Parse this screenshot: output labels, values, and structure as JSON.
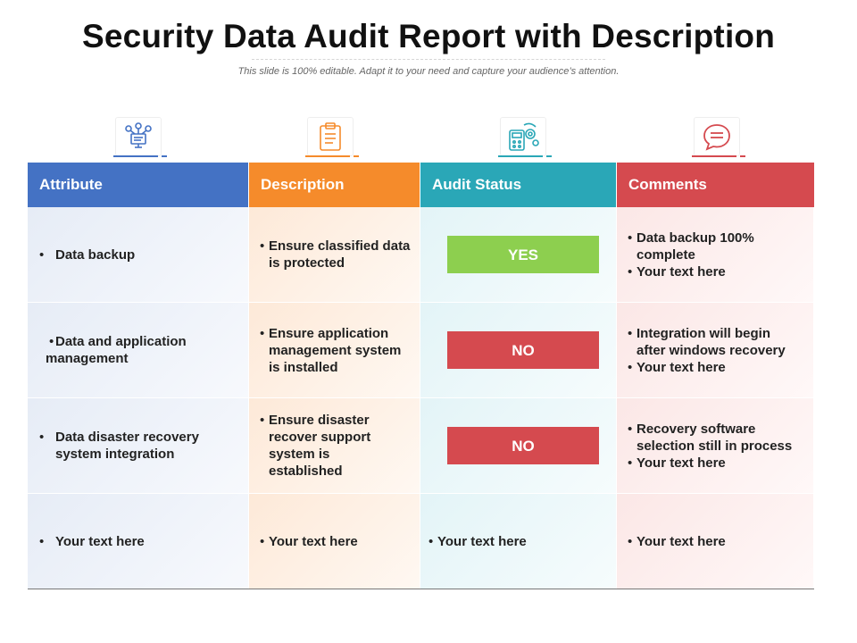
{
  "title": "Security Data Audit Report with Description",
  "subtitle": "This slide is 100% editable. Adapt it to your need and capture your audience’s attention.",
  "colors": {
    "attribute": "#4472c4",
    "description": "#f58b2b",
    "audit": "#2aa7b7",
    "comments": "#d54a4f",
    "yes": "#8dcf4f",
    "no": "#d54a4f"
  },
  "icons": [
    "user-network-icon",
    "clipboard-icon",
    "calculator-gear-icon",
    "chat-bubble-icon"
  ],
  "headers": [
    "Attribute",
    "Description",
    "Audit Status",
    "Comments"
  ],
  "rows": [
    {
      "attribute": [
        "Data backup"
      ],
      "description": [
        "Ensure classified data is protected"
      ],
      "status": "YES",
      "comments": [
        "Data backup 100% complete",
        "Your text here"
      ]
    },
    {
      "attribute": [
        "Data and application management"
      ],
      "description": [
        "Ensure application management system is installed"
      ],
      "status": "NO",
      "comments": [
        "Integration will begin after windows recovery",
        "Your text here"
      ]
    },
    {
      "attribute": [
        "Data disaster recovery system integration"
      ],
      "description": [
        "Ensure disaster recover support system is established"
      ],
      "status": "NO",
      "comments": [
        "Recovery software selection still in process",
        "Your text here"
      ]
    },
    {
      "attribute": [
        "Your text here"
      ],
      "description": [
        "Your text here"
      ],
      "status_text": "Your text here",
      "comments": [
        "Your text here"
      ]
    }
  ]
}
